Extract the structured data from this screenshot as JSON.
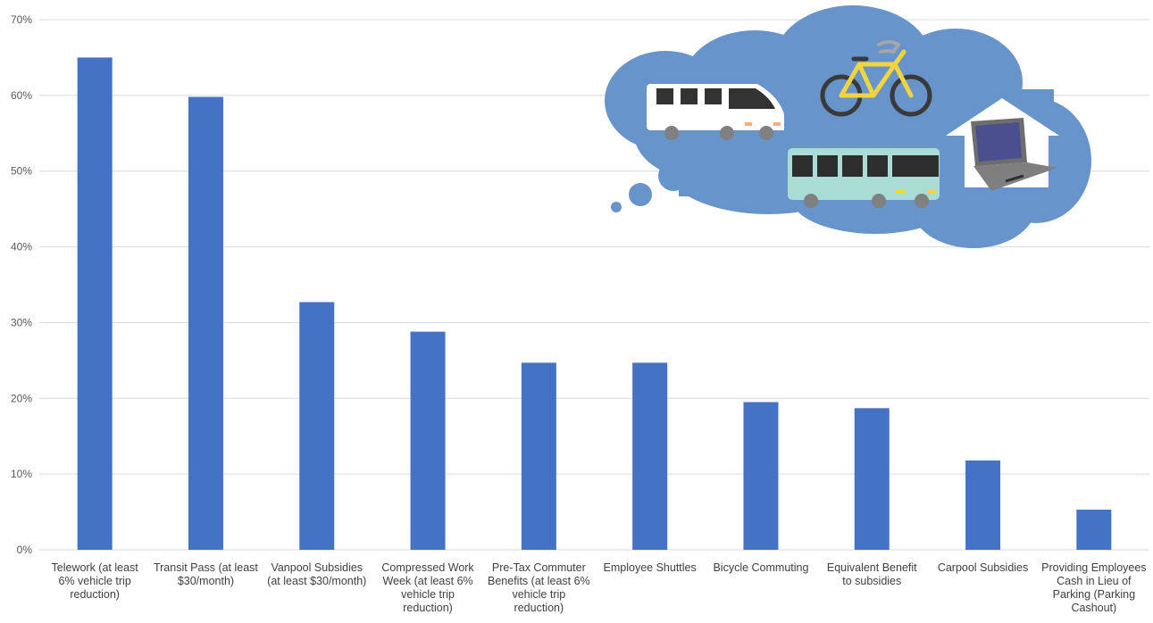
{
  "chart_data": {
    "type": "bar",
    "title": "",
    "xlabel": "",
    "ylabel": "",
    "ylim": [
      0,
      70
    ],
    "y_tick_step": 10,
    "y_tick_format": "percent",
    "grid": true,
    "legend": "none",
    "colors": {
      "bar": "#4472C4",
      "grid": "#D9D9D9",
      "cloud": "#6894CC"
    },
    "categories": [
      "Telework (at least 6% vehicle trip reduction)",
      "Transit Pass (at least $30/month)",
      "Vanpool Subsidies (at least $30/month)",
      "Compressed Work Week (at least 6% vehicle trip reduction)",
      "Pre-Tax Commuter Benefits (at least 6% vehicle trip reduction)",
      "Employee Shuttles",
      "Bicycle Commuting",
      "Equivalent Benefit to subsidies",
      "Carpool Subsidies",
      "Providing Employees Cash in Lieu of Parking (Parking Cashout)"
    ],
    "category_label_lines": [
      [
        "Telework (at least",
        "6% vehicle trip",
        "reduction)"
      ],
      [
        "Transit Pass (at least",
        "$30/month)"
      ],
      [
        "Vanpool Subsidies",
        "(at least $30/month)"
      ],
      [
        "Compressed Work",
        "Week (at least 6%",
        "vehicle trip",
        "reduction)"
      ],
      [
        "Pre-Tax Commuter",
        "Benefits (at least 6%",
        "vehicle trip",
        "reduction)"
      ],
      [
        "Employee Shuttles"
      ],
      [
        "Bicycle Commuting"
      ],
      [
        "Equivalent Benefit",
        "to subsidies"
      ],
      [
        "Carpool Subsidies"
      ],
      [
        "Providing Employees",
        "Cash in Lieu of",
        "Parking (Parking",
        "Cashout)"
      ]
    ],
    "values": [
      65,
      59.8,
      32.7,
      28.8,
      24.7,
      24.7,
      19.5,
      18.7,
      11.8,
      5.3
    ]
  },
  "illustration": {
    "icons": [
      "thought-cloud-icon",
      "van-icon",
      "bicycle-icon",
      "bus-icon",
      "laptop-home-icon"
    ]
  }
}
